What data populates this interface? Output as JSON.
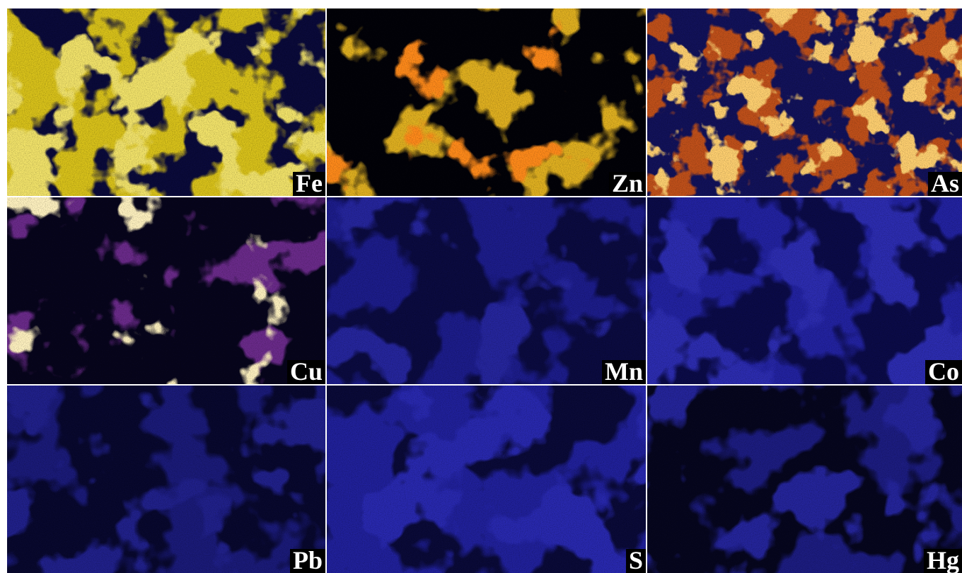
{
  "panels": [
    {
      "label": "Fe"
    },
    {
      "label": "Zn"
    },
    {
      "label": "As"
    },
    {
      "label": "Cu"
    },
    {
      "label": "Mn"
    },
    {
      "label": "Co"
    },
    {
      "label": "Pb"
    },
    {
      "label": "S"
    },
    {
      "label": "Hg"
    }
  ]
}
